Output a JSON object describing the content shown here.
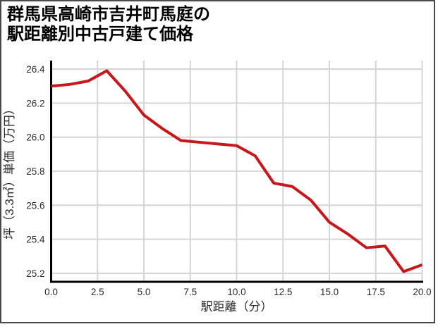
{
  "page": {
    "background_color": "#ffffff",
    "border_color": "#4a4a4a"
  },
  "title": {
    "line1": "群馬県高崎市吉井町馬庭の",
    "line2": "駅距離別中古戸建て価格"
  },
  "chart_data": {
    "type": "line",
    "title": "群馬県高崎市吉井町馬庭の駅距離別中古戸建て価格",
    "xlabel": "駅距離（分）",
    "ylabel": "坪（3.3㎡）単価（万円）",
    "x": [
      0,
      1,
      2,
      3,
      4,
      5,
      6,
      7,
      8,
      9,
      10,
      11,
      12,
      13,
      14,
      15,
      16,
      17,
      18,
      19,
      20
    ],
    "values": [
      26.3,
      26.31,
      26.33,
      26.39,
      26.27,
      26.13,
      26.05,
      25.98,
      25.97,
      25.96,
      25.95,
      25.89,
      25.73,
      25.71,
      25.63,
      25.5,
      25.43,
      25.35,
      25.36,
      25.21,
      25.25
    ],
    "xlim": [
      0,
      20
    ],
    "ylim": [
      25.15,
      26.45
    ],
    "xticks": [
      0,
      2.5,
      5,
      7.5,
      10,
      12.5,
      15,
      17.5,
      20
    ],
    "yticks": [
      25.2,
      25.4,
      25.6,
      25.8,
      26.0,
      26.2,
      26.4
    ],
    "xtick_labels": [
      "0.0",
      "2.5",
      "5.0",
      "7.5",
      "10.0",
      "12.5",
      "15.0",
      "17.5",
      "20.0"
    ],
    "ytick_labels": [
      "25.2",
      "25.4",
      "25.6",
      "25.8",
      "26.0",
      "26.2",
      "26.4"
    ],
    "grid": true,
    "legend": "none",
    "line_color": "#c8161b",
    "grid_color": "#d2d2d2",
    "axis_color": "#000000",
    "tick_color": "#2b2b2b"
  }
}
